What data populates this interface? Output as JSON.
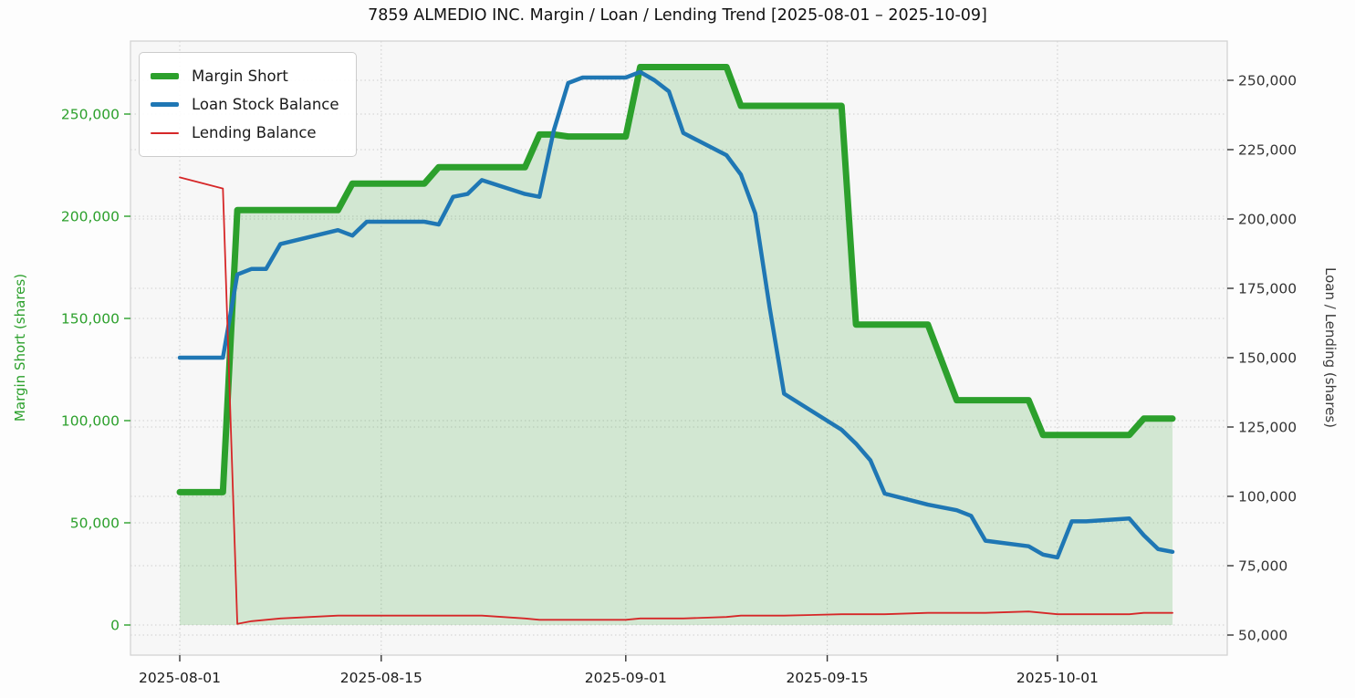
{
  "chart_data": {
    "type": "line",
    "title": "7859 ALMEDIO INC. Margin / Loan / Lending Trend [2025-08-01 – 2025-10-09]",
    "ylabel_left": "Margin Short (shares)",
    "ylabel_right": "Loan / Lending (shares)",
    "plot_bg": "#f7f7f7",
    "grid": true,
    "legend_position": "top-left",
    "x_tick_labels": [
      "2025-08-01",
      "2025-08-15",
      "2025-09-01",
      "2025-09-15",
      "2025-10-01"
    ],
    "x_tick_days": [
      0,
      14,
      31,
      45,
      61
    ],
    "left_axis": {
      "color": "#2ca02c",
      "ticks": [
        0,
        50000,
        100000,
        150000,
        200000,
        250000
      ],
      "tick_labels": [
        "0",
        "50,000",
        "100,000",
        "150,000",
        "200,000",
        "250,000"
      ],
      "lim": [
        -14700,
        285700
      ]
    },
    "right_axis": {
      "color": "#333333",
      "ticks": [
        50000,
        75000,
        100000,
        125000,
        150000,
        175000,
        200000,
        225000,
        250000
      ],
      "tick_labels": [
        "50,000",
        "75,000",
        "100,000",
        "125,000",
        "150,000",
        "175,000",
        "200,000",
        "225,000",
        "250,000"
      ],
      "lim": [
        42800,
        264100
      ]
    },
    "dates": [
      "2025-08-01",
      "2025-08-04",
      "2025-08-05",
      "2025-08-06",
      "2025-08-07",
      "2025-08-08",
      "2025-08-12",
      "2025-08-13",
      "2025-08-14",
      "2025-08-15",
      "2025-08-18",
      "2025-08-19",
      "2025-08-20",
      "2025-08-21",
      "2025-08-22",
      "2025-08-25",
      "2025-08-26",
      "2025-08-27",
      "2025-08-28",
      "2025-08-29",
      "2025-09-01",
      "2025-09-02",
      "2025-09-03",
      "2025-09-04",
      "2025-09-05",
      "2025-09-08",
      "2025-09-09",
      "2025-09-10",
      "2025-09-11",
      "2025-09-12",
      "2025-09-16",
      "2025-09-17",
      "2025-09-18",
      "2025-09-19",
      "2025-09-22",
      "2025-09-24",
      "2025-09-25",
      "2025-09-26",
      "2025-09-29",
      "2025-09-30",
      "2025-10-01",
      "2025-10-02",
      "2025-10-03",
      "2025-10-06",
      "2025-10-07",
      "2025-10-08",
      "2025-10-09"
    ],
    "day_offsets": [
      0,
      3,
      4,
      5,
      6,
      7,
      11,
      12,
      13,
      14,
      17,
      18,
      19,
      20,
      21,
      24,
      25,
      26,
      27,
      28,
      31,
      32,
      33,
      34,
      35,
      38,
      39,
      40,
      41,
      42,
      46,
      47,
      48,
      49,
      52,
      54,
      55,
      56,
      59,
      60,
      61,
      62,
      63,
      66,
      67,
      68,
      69
    ],
    "series": [
      {
        "id": "margin-short",
        "name": "Margin Short",
        "axis": "left",
        "color": "#2ca02c",
        "width": 7,
        "fill": "rgba(44,160,44,0.18)",
        "values": [
          65000,
          65000,
          203000,
          203000,
          203000,
          203000,
          203000,
          216000,
          216000,
          216000,
          216000,
          224000,
          224000,
          224000,
          224000,
          224000,
          240000,
          240000,
          239000,
          239000,
          239000,
          273000,
          273000,
          273000,
          273000,
          273000,
          254000,
          254000,
          254000,
          254000,
          254000,
          147000,
          147000,
          147000,
          147000,
          110000,
          110000,
          110000,
          110000,
          93000,
          93000,
          93000,
          93000,
          93000,
          101000,
          101000,
          101000
        ]
      },
      {
        "id": "loan-stock-balance",
        "name": "Loan Stock Balance",
        "axis": "right",
        "color": "#1f77b4",
        "width": 4.5,
        "values": [
          150000,
          150000,
          180000,
          182000,
          182000,
          191000,
          196000,
          194000,
          199000,
          199000,
          199000,
          198000,
          208000,
          209000,
          214000,
          209000,
          208000,
          232000,
          249000,
          251000,
          251000,
          253000,
          250000,
          246000,
          231000,
          223000,
          216000,
          202000,
          168000,
          137000,
          124000,
          119000,
          113000,
          101000,
          97000,
          95000,
          93000,
          84000,
          82000,
          79000,
          78000,
          91000,
          91000,
          92000,
          86000,
          81000,
          80000
        ]
      },
      {
        "id": "lending-balance",
        "name": "Lending Balance",
        "axis": "right",
        "color": "#d62728",
        "width": 1.8,
        "values": [
          215000,
          211000,
          54000,
          55000,
          55500,
          56000,
          57000,
          57000,
          57000,
          57000,
          57000,
          57000,
          57000,
          57000,
          57000,
          56000,
          55500,
          55500,
          55500,
          55500,
          55500,
          56000,
          56000,
          56000,
          56000,
          56500,
          57000,
          57000,
          57000,
          57000,
          57500,
          57500,
          57500,
          57500,
          58000,
          58000,
          58000,
          58000,
          58500,
          58000,
          57500,
          57500,
          57500,
          57500,
          58000,
          58000,
          58000
        ]
      }
    ]
  }
}
